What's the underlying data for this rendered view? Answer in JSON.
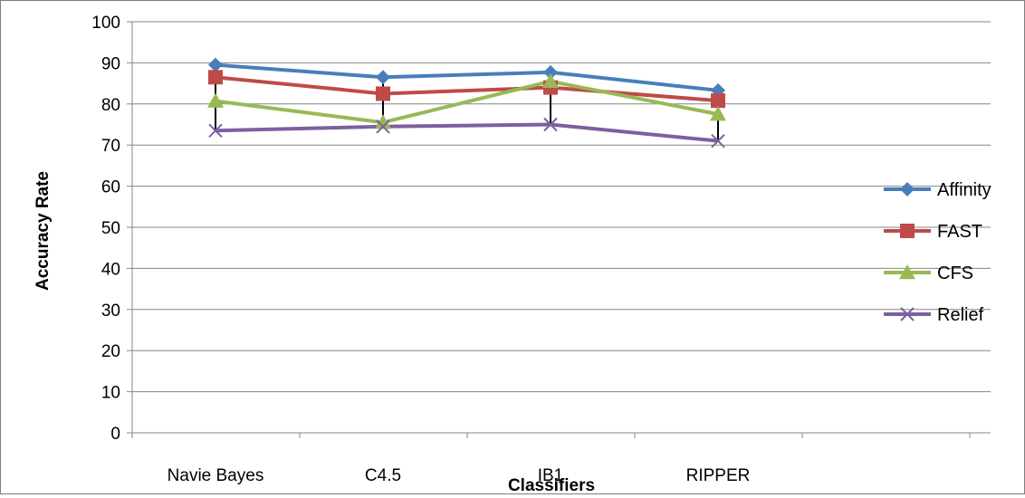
{
  "chart_data": {
    "type": "line",
    "title": "",
    "xlabel": "Classifiers",
    "ylabel": "Accuracy Rate",
    "categories": [
      "Navie Bayes",
      "C4.5",
      "IB1",
      "RIPPER"
    ],
    "ylim": [
      0,
      100
    ],
    "yticks": [
      0,
      10,
      20,
      30,
      40,
      50,
      60,
      70,
      80,
      90,
      100
    ],
    "grid": true,
    "legend_position": "right",
    "series": [
      {
        "name": "Affinity",
        "values": [
          89.5,
          86.5,
          87.7,
          83.3
        ],
        "color": "#4a7ebb",
        "marker": "diamond"
      },
      {
        "name": "FAST",
        "values": [
          86.5,
          82.5,
          84.0,
          80.8
        ],
        "color": "#be4b48",
        "marker": "square"
      },
      {
        "name": "CFS",
        "values": [
          80.7,
          75.5,
          85.5,
          77.5
        ],
        "color": "#98b954",
        "marker": "triangle"
      },
      {
        "name": "Relief",
        "values": [
          73.5,
          74.5,
          75.0,
          71.0
        ],
        "color": "#7d60a0",
        "marker": "x"
      }
    ]
  }
}
